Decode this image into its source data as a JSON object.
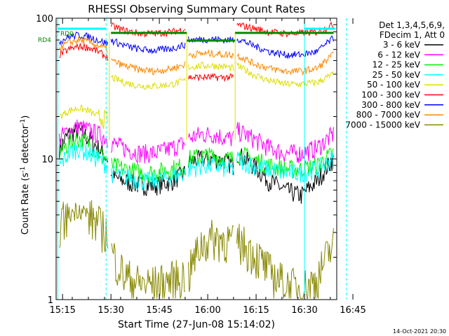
{
  "chart_data": {
    "type": "line",
    "title": "RHESSI Observing Summary Count Rates",
    "xlabel": "Start Time (27-Jun-08 15:14:02)",
    "ylabel_main": "Count Rate (s",
    "ylabel_sup": "-1",
    "ylabel_mid": " detector",
    "ylabel_end": ")",
    "yscale": "log",
    "ylim": [
      1,
      100
    ],
    "y_ticks": [
      {
        "v": 1,
        "label": "1"
      },
      {
        "v": 10,
        "label": "10"
      },
      {
        "v": 100,
        "label": "100"
      }
    ],
    "xlim_min": [
      -1,
      86
    ],
    "x_ticks": [
      {
        "m": 1,
        "label": "15:15"
      },
      {
        "m": 16,
        "label": "15:30"
      },
      {
        "m": 31,
        "label": "15:45"
      },
      {
        "m": 46,
        "label": "16:00"
      },
      {
        "m": 61,
        "label": "16:15"
      },
      {
        "m": 76,
        "label": "16:30"
      },
      {
        "m": 91,
        "label": "16:45"
      }
    ],
    "info_line1": "Det 1,3,4,5,6,9,",
    "info_line2": "FDecim 1, Att 0",
    "legend": [
      {
        "label": "3 - 6 keV",
        "color": "#000000"
      },
      {
        "label": "6 - 12 keV",
        "color": "#ff00ff"
      },
      {
        "label": "12 - 25 keV",
        "color": "#00ee00"
      },
      {
        "label": "25 - 50 keV",
        "color": "#00ffff"
      },
      {
        "label": "50 - 100 keV",
        "color": "#dddd00"
      },
      {
        "label": "100 - 300 keV",
        "color": "#ff0000"
      },
      {
        "label": "300 - 800 keV",
        "color": "#0000ff"
      },
      {
        "label": "800 - 7000 keV",
        "color": "#ff8800"
      },
      {
        "label": "7000 - 15000 keV",
        "color": "#888800"
      }
    ],
    "flags": [
      {
        "label": "RD0",
        "color": "#00ffff"
      },
      {
        "label": "RD4",
        "color": "#008800"
      }
    ],
    "night_boundaries_min": [
      -0.5,
      14.5,
      76,
      89
    ],
    "data_gaps_min": [
      15.5,
      39.5,
      54.5
    ],
    "series": [
      {
        "name": "3 - 6 keV",
        "color": "#000000",
        "segments": [
          {
            "t": [
              0,
              3,
              6,
              9,
              12,
              15
            ],
            "v": [
              12,
              15,
              16,
              14,
              12,
              10
            ]
          },
          {
            "t": [
              16,
              20,
              25,
              30,
              35,
              39
            ],
            "v": [
              7.5,
              7,
              6.5,
              6.5,
              7,
              8
            ]
          },
          {
            "t": [
              40,
              44,
              48,
              52,
              54
            ],
            "v": [
              9.5,
              10,
              10,
              9.5,
              9
            ]
          },
          {
            "t": [
              55,
              60,
              65,
              70,
              75,
              80,
              85
            ],
            "v": [
              11,
              9,
              7,
              6,
              5.5,
              7,
              10
            ]
          }
        ]
      },
      {
        "name": "6 - 12 keV",
        "color": "#ff00ff",
        "segments": [
          {
            "t": [
              0,
              3,
              6,
              9,
              12,
              15
            ],
            "v": [
              14,
              16,
              17,
              16,
              15,
              14
            ]
          },
          {
            "t": [
              16,
              20,
              25,
              30,
              35,
              39
            ],
            "v": [
              13,
              12,
              11,
              11,
              12,
              13
            ]
          },
          {
            "t": [
              40,
              44,
              48,
              52,
              54
            ],
            "v": [
              14,
              15,
              15,
              14,
              14
            ]
          },
          {
            "t": [
              55,
              60,
              65,
              70,
              75,
              80,
              85
            ],
            "v": [
              16,
              14,
              12,
              11,
              11,
              12,
              15
            ]
          }
        ]
      },
      {
        "name": "12 - 25 keV",
        "color": "#00ee00",
        "segments": [
          {
            "t": [
              0,
              3,
              6,
              9,
              12,
              15
            ],
            "v": [
              11,
              13,
              14,
              13,
              11,
              10
            ]
          },
          {
            "t": [
              16,
              20,
              25,
              30,
              35,
              39
            ],
            "v": [
              9,
              8.5,
              8,
              8,
              8.5,
              9
            ]
          },
          {
            "t": [
              40,
              44,
              48,
              52,
              54
            ],
            "v": [
              10,
              10.5,
              10.5,
              10,
              10
            ]
          },
          {
            "t": [
              55,
              60,
              65,
              70,
              75,
              80,
              85
            ],
            "v": [
              11,
              10,
              9,
              8.5,
              8.5,
              9,
              11
            ]
          }
        ]
      },
      {
        "name": "25 - 50 keV",
        "color": "#00ffff",
        "segments": [
          {
            "t": [
              0,
              3,
              6,
              9,
              12,
              15
            ],
            "v": [
              9,
              11,
              12,
              11,
              10,
              9
            ]
          },
          {
            "t": [
              16,
              20,
              25,
              30,
              35,
              39
            ],
            "v": [
              8,
              7.5,
              7,
              7,
              7.5,
              8
            ]
          },
          {
            "t": [
              40,
              44,
              48,
              52,
              54
            ],
            "v": [
              8.5,
              9,
              9,
              8.5,
              8.5
            ]
          },
          {
            "t": [
              55,
              60,
              65,
              70,
              75,
              80,
              85
            ],
            "v": [
              10,
              9,
              8.5,
              8,
              8,
              8.5,
              10
            ]
          }
        ]
      },
      {
        "name": "50 - 100 keV",
        "color": "#dddd00",
        "segments": [
          {
            "t": [
              0,
              3,
              6,
              9,
              12,
              15
            ],
            "v": [
              20,
              22,
              23,
              22,
              20,
              19
            ]
          },
          {
            "t": [
              16,
              20,
              25,
              30,
              35,
              39
            ],
            "v": [
              38,
              35,
              33,
              33,
              34,
              36
            ]
          },
          {
            "t": [
              40,
              44,
              48,
              52,
              54
            ],
            "v": [
              45,
              46,
              46,
              45,
              44
            ]
          },
          {
            "t": [
              55,
              60,
              65,
              70,
              75,
              80,
              85
            ],
            "v": [
              46,
              40,
              36,
              34,
              34,
              35,
              40
            ]
          }
        ]
      },
      {
        "name": "100 - 300 keV",
        "color": "#ff0000",
        "segments": [
          {
            "t": [
              0,
              3,
              6,
              9,
              12,
              15
            ],
            "v": [
              55,
              60,
              63,
              62,
              58,
              52
            ]
          },
          {
            "t": [
              16,
              20,
              25,
              30,
              35,
              39
            ],
            "v": [
              88,
              82,
              78,
              78,
              80,
              84
            ]
          },
          {
            "t": [
              40,
              44,
              48,
              52,
              54
            ],
            "v": [
              38,
              38,
              38,
              38,
              38
            ]
          },
          {
            "t": [
              55,
              60,
              65,
              70,
              75,
              80,
              85
            ],
            "v": [
              90,
              85,
              80,
              78,
              78,
              80,
              90
            ]
          }
        ]
      },
      {
        "name": "300 - 800 keV",
        "color": "#0000ff",
        "segments": [
          {
            "t": [
              0,
              3,
              6,
              9,
              12,
              15
            ],
            "v": [
              68,
              74,
              76,
              74,
              70,
              66
            ]
          },
          {
            "t": [
              16,
              20,
              25,
              30,
              35,
              39
            ],
            "v": [
              70,
              64,
              60,
              59,
              61,
              65
            ]
          },
          {
            "t": [
              40,
              44,
              48,
              52,
              54
            ],
            "v": [
              70,
              71,
              71,
              70,
              70
            ]
          },
          {
            "t": [
              55,
              60,
              65,
              70,
              75,
              80,
              85
            ],
            "v": [
              72,
              64,
              58,
              55,
              55,
              58,
              72
            ]
          }
        ]
      },
      {
        "name": "800 - 7000 keV",
        "color": "#ff8800",
        "segments": [
          {
            "t": [
              0,
              3,
              6,
              9,
              12,
              15
            ],
            "v": [
              62,
              67,
              70,
              68,
              64,
              60
            ]
          },
          {
            "t": [
              16,
              20,
              25,
              30,
              35,
              39
            ],
            "v": [
              50,
              46,
              43,
              42,
              44,
              47
            ]
          },
          {
            "t": [
              40,
              44,
              48,
              52,
              54
            ],
            "v": [
              55,
              56,
              56,
              55,
              55
            ]
          },
          {
            "t": [
              55,
              60,
              65,
              70,
              75,
              80,
              85
            ],
            "v": [
              55,
              48,
              44,
              42,
              42,
              44,
              55
            ]
          }
        ]
      },
      {
        "name": "7000 - 15000 keV",
        "color": "#888800",
        "segments": [
          {
            "t": [
              0,
              3,
              6,
              9,
              12,
              15
            ],
            "v": [
              3.5,
              4,
              4.5,
              4,
              3.5,
              3
            ]
          },
          {
            "t": [
              16,
              20,
              25,
              30,
              35,
              39
            ],
            "v": [
              2.2,
              1.5,
              1.3,
              1.3,
              1.4,
              1.5
            ]
          },
          {
            "t": [
              40,
              44,
              48,
              52,
              54
            ],
            "v": [
              1.5,
              2.5,
              2.8,
              2.7,
              2.5
            ]
          },
          {
            "t": [
              55,
              60,
              65,
              70,
              75,
              80,
              85
            ],
            "v": [
              2.7,
              2.2,
              1.6,
              1.3,
              1.2,
              1.4,
              2.5
            ]
          }
        ]
      }
    ]
  },
  "footer_date": "14-Oct-2021 20:30"
}
